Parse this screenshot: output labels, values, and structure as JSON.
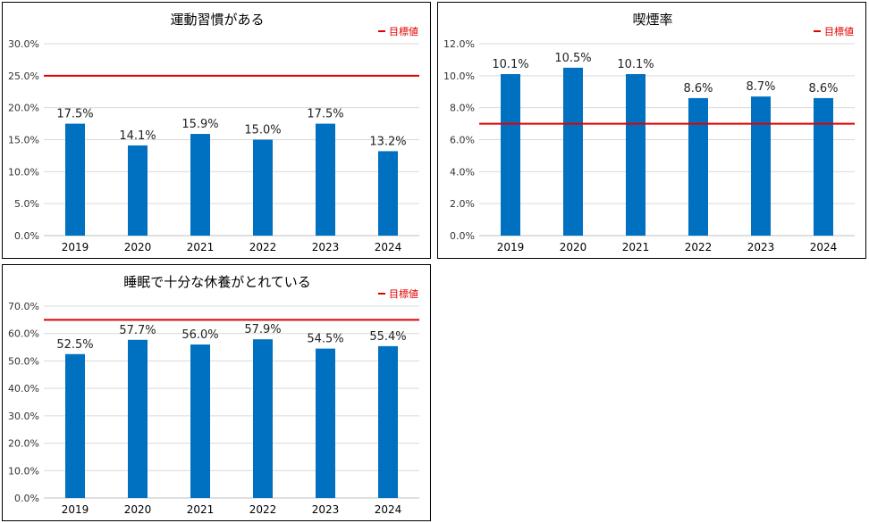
{
  "colors": {
    "bar": "#0070c0",
    "target": "#e00000",
    "grid": "#d9d9d9"
  },
  "chart_data": [
    {
      "type": "bar",
      "title": "運動習慣がある",
      "categories": [
        "2019",
        "2020",
        "2021",
        "2022",
        "2023",
        "2024"
      ],
      "values": [
        17.5,
        14.1,
        15.9,
        15.0,
        17.5,
        13.2
      ],
      "ylim": [
        0,
        30
      ],
      "ytick_step": 5,
      "target": 25,
      "legend": "目標値",
      "legend_position": "top-right",
      "grid": true,
      "unit": "%"
    },
    {
      "type": "bar",
      "title": "喫煙率",
      "categories": [
        "2019",
        "2020",
        "2021",
        "2022",
        "2023",
        "2024"
      ],
      "values": [
        10.1,
        10.5,
        10.1,
        8.6,
        8.7,
        8.6
      ],
      "ylim": [
        0,
        12
      ],
      "ytick_step": 2,
      "target": 7,
      "legend": "目標値",
      "legend_position": "top-right",
      "grid": true,
      "unit": "%"
    },
    {
      "type": "bar",
      "title": "睡眠で十分な休養がとれている",
      "categories": [
        "2019",
        "2020",
        "2021",
        "2022",
        "2023",
        "2024"
      ],
      "values": [
        52.5,
        57.7,
        56.0,
        57.9,
        54.5,
        55.4
      ],
      "ylim": [
        0,
        70
      ],
      "ytick_step": 10,
      "target": 65,
      "legend": "目標値",
      "legend_position": "top-right",
      "grid": true,
      "unit": "%"
    }
  ]
}
